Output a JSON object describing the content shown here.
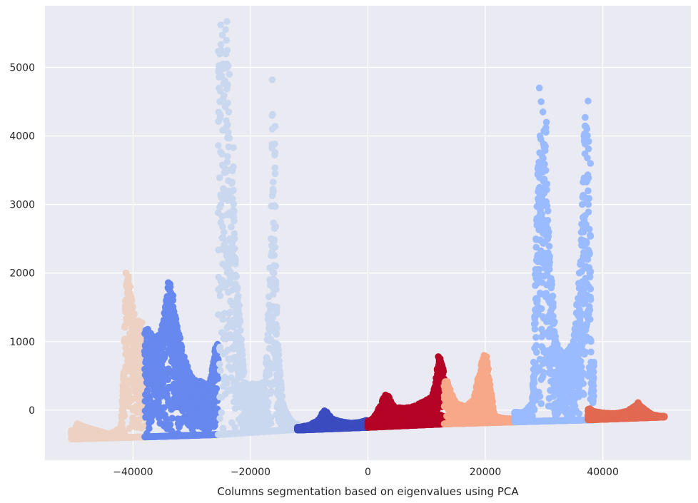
{
  "chart_data": {
    "type": "scatter",
    "title": "",
    "xlabel": "Columns segmentation based on eigenvalues using PCA",
    "ylabel": "",
    "xlim": [
      -55000,
      55000
    ],
    "ylim": [
      -730,
      5900
    ],
    "xticks": [
      -40000,
      -20000,
      0,
      20000,
      40000
    ],
    "xtick_labels": [
      "−40000",
      "−20000",
      "0",
      "20000",
      "40000"
    ],
    "yticks": [
      0,
      1000,
      2000,
      3000,
      4000,
      5000
    ],
    "ytick_labels": [
      "0",
      "1000",
      "2000",
      "3000",
      "4000",
      "5000"
    ],
    "grid": true,
    "background": "#eaeaf2",
    "colormap": "coolwarm",
    "series": [
      {
        "color": "#edd1c2",
        "x_range": [
          -50500,
          -38000
        ],
        "baseline": [
          -420,
          -390
        ],
        "points": [
          [
            -50000,
            -300
          ],
          [
            -49500,
            -200
          ],
          [
            -48000,
            -250
          ],
          [
            -46000,
            -300
          ],
          [
            -44000,
            -350
          ],
          [
            -42000,
            -250
          ],
          [
            -41500,
            1000
          ],
          [
            -41200,
            2000
          ],
          [
            -40800,
            1950
          ],
          [
            -40500,
            1800
          ],
          [
            -40200,
            1600
          ],
          [
            -39800,
            1400
          ],
          [
            -39500,
            1200
          ],
          [
            -39000,
            1300
          ],
          [
            -38500,
            1280
          ],
          [
            -38200,
            600
          ]
        ]
      },
      {
        "color": "#6788ee",
        "x_range": [
          -38000,
          -25500
        ],
        "baseline": [
          -390,
          -355
        ],
        "points": [
          [
            -37500,
            1180
          ],
          [
            -37000,
            1120
          ],
          [
            -36000,
            1050
          ],
          [
            -35000,
            1240
          ],
          [
            -34500,
            1500
          ],
          [
            -34000,
            1860
          ],
          [
            -33700,
            1840
          ],
          [
            -33200,
            1670
          ],
          [
            -32500,
            1220
          ],
          [
            -32000,
            1050
          ],
          [
            -31000,
            700
          ],
          [
            -30000,
            480
          ],
          [
            -28500,
            420
          ],
          [
            -27000,
            400
          ],
          [
            -26500,
            600
          ],
          [
            -26000,
            900
          ],
          [
            -25600,
            960
          ]
        ]
      },
      {
        "color": "#cad8ef",
        "x_range": [
          -25500,
          -12000
        ],
        "baseline": [
          -355,
          -280
        ],
        "points": [
          [
            -24000,
            5670
          ],
          [
            -23800,
            5020
          ],
          [
            -23600,
            4900
          ],
          [
            -23900,
            4750
          ],
          [
            -23700,
            4350
          ],
          [
            -23900,
            4160
          ],
          [
            -23800,
            4050
          ],
          [
            -22900,
            3830
          ],
          [
            -23900,
            3700
          ],
          [
            -23700,
            3500
          ],
          [
            -23200,
            3310
          ],
          [
            -23500,
            2500
          ],
          [
            -22700,
            2500
          ],
          [
            -21000,
            400
          ],
          [
            -19000,
            380
          ],
          [
            -17500,
            420
          ],
          [
            -16300,
            4820
          ],
          [
            -15800,
            4140
          ],
          [
            -15900,
            3880
          ],
          [
            -15800,
            3450
          ],
          [
            -16100,
            3200
          ],
          [
            -15700,
            2680
          ],
          [
            -16500,
            2500
          ],
          [
            -16000,
            2000
          ],
          [
            -15500,
            1200
          ],
          [
            -14500,
            100
          ],
          [
            -13500,
            -100
          ],
          [
            -12500,
            -200
          ]
        ]
      },
      {
        "color": "#3b4cc0",
        "x_range": [
          -12000,
          0
        ],
        "baseline": [
          -290,
          -250
        ],
        "points": [
          [
            -12000,
            -250
          ],
          [
            -10000,
            -220
          ],
          [
            -8500,
            -150
          ],
          [
            -7800,
            -50
          ],
          [
            -7400,
            -10
          ],
          [
            -7000,
            -30
          ],
          [
            -6200,
            -120
          ],
          [
            -5000,
            -160
          ],
          [
            -3000,
            -190
          ],
          [
            -1500,
            -180
          ],
          [
            -300,
            -150
          ]
        ]
      },
      {
        "color": "#b40426",
        "x_range": [
          0,
          13000
        ],
        "baseline": [
          -250,
          -200
        ],
        "points": [
          [
            500,
            -150
          ],
          [
            1500,
            -50
          ],
          [
            2500,
            150
          ],
          [
            3000,
            220
          ],
          [
            3500,
            200
          ],
          [
            4500,
            50
          ],
          [
            6000,
            30
          ],
          [
            8000,
            60
          ],
          [
            10000,
            150
          ],
          [
            11000,
            200
          ],
          [
            11800,
            600
          ],
          [
            12000,
            780
          ],
          [
            12300,
            750
          ],
          [
            12800,
            600
          ],
          [
            13200,
            400
          ]
        ]
      },
      {
        "color": "#f7a889",
        "x_range": [
          13000,
          25500
        ],
        "baseline": [
          -200,
          -170
        ],
        "points": [
          [
            13500,
            420
          ],
          [
            14000,
            300
          ],
          [
            15000,
            100
          ],
          [
            16500,
            60
          ],
          [
            18000,
            150
          ],
          [
            18700,
            450
          ],
          [
            19400,
            700
          ],
          [
            19800,
            800
          ],
          [
            20200,
            780
          ],
          [
            20500,
            600
          ],
          [
            21500,
            -80
          ],
          [
            23000,
            -120
          ],
          [
            25000,
            -130
          ]
        ]
      },
      {
        "color": "#9abbff",
        "x_range": [
          25000,
          38500
        ],
        "baseline": [
          -170,
          -140
        ],
        "points": [
          [
            26500,
            -30
          ],
          [
            28000,
            100
          ],
          [
            29200,
            4700
          ],
          [
            29500,
            4500
          ],
          [
            29800,
            4350
          ],
          [
            30400,
            4200
          ],
          [
            29300,
            4000
          ],
          [
            30100,
            3870
          ],
          [
            29700,
            3700
          ],
          [
            30500,
            3300
          ],
          [
            30800,
            2600
          ],
          [
            32000,
            1000
          ],
          [
            33500,
            800
          ],
          [
            35000,
            1000
          ],
          [
            36000,
            2000
          ],
          [
            36500,
            3000
          ],
          [
            36800,
            4000
          ],
          [
            37000,
            4270
          ],
          [
            37300,
            4100
          ],
          [
            37500,
            4510
          ],
          [
            37600,
            3920
          ],
          [
            37900,
            3600
          ],
          [
            37500,
            3200
          ],
          [
            37800,
            2000
          ],
          [
            38000,
            700
          ]
        ]
      },
      {
        "color": "#e26952",
        "x_range": [
          37500,
          50500
        ],
        "baseline": [
          -140,
          -100
        ],
        "points": [
          [
            37800,
            20
          ],
          [
            38500,
            -20
          ],
          [
            40000,
            -40
          ],
          [
            42000,
            -50
          ],
          [
            44000,
            -20
          ],
          [
            45500,
            60
          ],
          [
            46000,
            110
          ],
          [
            47000,
            20
          ],
          [
            48500,
            -70
          ],
          [
            50000,
            -90
          ]
        ]
      }
    ]
  }
}
